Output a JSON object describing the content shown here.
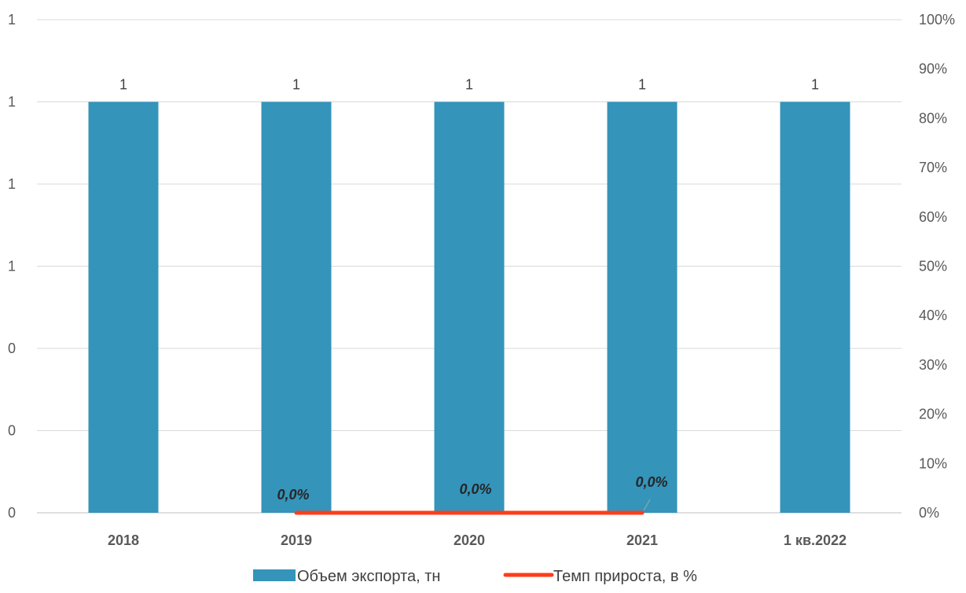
{
  "chart_data": {
    "type": "bar",
    "categories": [
      "2018",
      "2019",
      "2020",
      "2021",
      "1 кв.2022"
    ],
    "series": [
      {
        "name": "Объем экспорта, тн",
        "type": "bar",
        "axis": "left",
        "values": [
          1,
          1,
          1,
          1,
          1
        ],
        "data_labels": [
          "1",
          "1",
          "1",
          "1",
          "1"
        ],
        "color": "#3594BA"
      },
      {
        "name": "Темп прироста, в %",
        "type": "line",
        "axis": "right",
        "values": [
          null,
          0,
          0,
          0,
          null
        ],
        "data_labels": [
          null,
          "0,0%",
          "0,0%",
          "0,0%",
          null
        ],
        "color": "#FF3C1A"
      }
    ],
    "left_axis": {
      "ylim": [
        0,
        1.2
      ],
      "tick_labels": [
        "0",
        "0",
        "0",
        "1",
        "1",
        "1",
        "1"
      ]
    },
    "right_axis": {
      "ylim": [
        0,
        100
      ],
      "tick_labels": [
        "0%",
        "10%",
        "20%",
        "30%",
        "40%",
        "50%",
        "60%",
        "70%",
        "80%",
        "90%",
        "100%"
      ]
    },
    "grid": true,
    "legend": "bottom",
    "title": "",
    "xlabel": "",
    "ylabel": ""
  }
}
